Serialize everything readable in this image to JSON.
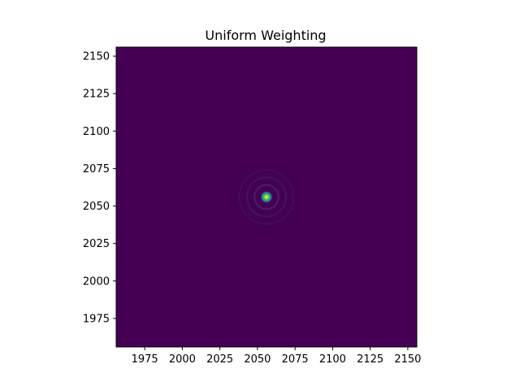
{
  "chart_data": {
    "type": "heatmap",
    "title": "Uniform Weighting",
    "xlabel": "",
    "ylabel": "",
    "xlim": [
      1956,
      2156
    ],
    "ylim": [
      1956,
      2156
    ],
    "x_ticks": [
      1975,
      2000,
      2025,
      2050,
      2075,
      2100,
      2125,
      2150
    ],
    "y_ticks": [
      1975,
      2000,
      2025,
      2050,
      2075,
      2100,
      2125,
      2150
    ],
    "colormap": "viridis",
    "grid": false,
    "legend": "none",
    "peak": {
      "x": 2056,
      "y": 2056,
      "value": 1.0
    },
    "main_lobe_radius": 3.5,
    "sidelobe_rings": [
      {
        "radius": 8,
        "relative_intensity": 0.06
      },
      {
        "radius": 13,
        "relative_intensity": 0.035
      },
      {
        "radius": 18,
        "relative_intensity": 0.02
      }
    ],
    "background_value": 0.0,
    "colors": {
      "background": "#440154",
      "low": "#482878",
      "mid": "#21918c",
      "high": "#fde725"
    }
  }
}
